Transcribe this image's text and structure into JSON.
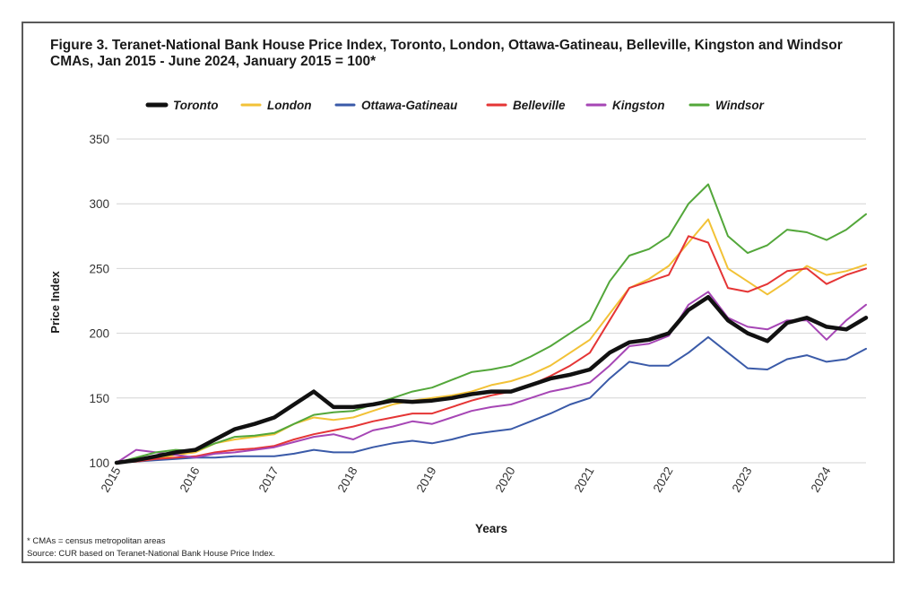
{
  "chart_data": {
    "type": "line",
    "title": "Figure 3. Teranet-National Bank House Price Index, Toronto, London, Ottawa-Gatineau, Belleville, Kingston and Windsor CMAs, Jan 2015 - June 2024, January 2015 = 100*",
    "xlabel": "Years",
    "ylabel": "Price Index",
    "ylim": [
      100,
      350
    ],
    "xlim": [
      2015.0,
      2024.5
    ],
    "yticks": [
      "100",
      "150",
      "200",
      "250",
      "300",
      "350"
    ],
    "xticks": [
      "2015",
      "2016",
      "2017",
      "2018",
      "2019",
      "2020",
      "2021",
      "2022",
      "2023",
      "2024"
    ],
    "grid": true,
    "legend_position": "top",
    "x": [
      2015.0,
      2015.25,
      2015.5,
      2015.75,
      2016.0,
      2016.25,
      2016.5,
      2016.75,
      2017.0,
      2017.25,
      2017.5,
      2017.75,
      2018.0,
      2018.25,
      2018.5,
      2018.75,
      2019.0,
      2019.25,
      2019.5,
      2019.75,
      2020.0,
      2020.25,
      2020.5,
      2020.75,
      2021.0,
      2021.25,
      2021.5,
      2021.75,
      2022.0,
      2022.25,
      2022.5,
      2022.75,
      2023.0,
      2023.25,
      2023.5,
      2023.75,
      2024.0,
      2024.25,
      2024.5
    ],
    "series": [
      {
        "name": "Toronto",
        "color": "#111111",
        "width": 4.5,
        "values": [
          100,
          102,
          105,
          108,
          110,
          118,
          126,
          130,
          135,
          145,
          155,
          143,
          143,
          145,
          148,
          147,
          148,
          150,
          153,
          155,
          155,
          160,
          165,
          168,
          172,
          185,
          193,
          195,
          200,
          218,
          228,
          210,
          200,
          194,
          208,
          212,
          205,
          203,
          212
        ]
      },
      {
        "name": "London",
        "color": "#f2c237",
        "width": 2,
        "values": [
          100,
          101,
          103,
          106,
          108,
          115,
          118,
          120,
          122,
          130,
          135,
          133,
          135,
          140,
          145,
          148,
          150,
          152,
          155,
          160,
          163,
          168,
          175,
          185,
          195,
          215,
          235,
          242,
          252,
          270,
          288,
          250,
          240,
          230,
          240,
          252,
          245,
          248,
          253
        ]
      },
      {
        "name": "Ottawa-Gatineau",
        "color": "#3a5aa8",
        "width": 2,
        "values": [
          100,
          101,
          102,
          103,
          104,
          104,
          105,
          105,
          105,
          107,
          110,
          108,
          108,
          112,
          115,
          117,
          115,
          118,
          122,
          124,
          126,
          132,
          138,
          145,
          150,
          165,
          178,
          175,
          175,
          185,
          197,
          185,
          173,
          172,
          180,
          183,
          178,
          180,
          188
        ]
      },
      {
        "name": "Belleville",
        "color": "#e53535",
        "width": 2,
        "values": [
          100,
          101,
          103,
          104,
          105,
          108,
          110,
          111,
          113,
          118,
          122,
          125,
          128,
          132,
          135,
          138,
          138,
          143,
          148,
          152,
          155,
          160,
          167,
          175,
          185,
          210,
          235,
          240,
          245,
          275,
          270,
          235,
          232,
          238,
          248,
          250,
          238,
          245,
          250
        ]
      },
      {
        "name": "Kingston",
        "color": "#a646b5",
        "width": 2,
        "values": [
          100,
          110,
          108,
          106,
          104,
          107,
          108,
          110,
          112,
          116,
          120,
          122,
          118,
          125,
          128,
          132,
          130,
          135,
          140,
          143,
          145,
          150,
          155,
          158,
          162,
          175,
          190,
          192,
          198,
          222,
          232,
          212,
          205,
          203,
          210,
          210,
          195,
          210,
          222
        ]
      },
      {
        "name": "Windsor",
        "color": "#53a73a",
        "width": 2,
        "values": [
          100,
          104,
          108,
          110,
          109,
          115,
          120,
          121,
          123,
          130,
          137,
          139,
          140,
          145,
          150,
          155,
          158,
          164,
          170,
          172,
          175,
          182,
          190,
          200,
          210,
          240,
          260,
          265,
          275,
          300,
          315,
          275,
          262,
          268,
          280,
          278,
          272,
          280,
          292
        ]
      }
    ]
  },
  "footnotes": {
    "cma_note": "* CMAs = census metropolitan areas",
    "source": "Source: CUR based on Teranet-National Bank House Price Index."
  }
}
